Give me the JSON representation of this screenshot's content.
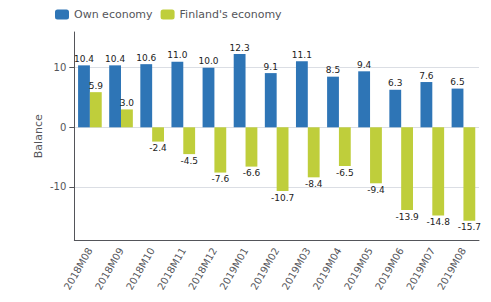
{
  "chart_data": {
    "type": "bar",
    "categories": [
      "2018M08",
      "2018M09",
      "2018M10",
      "2018M11",
      "2018M12",
      "2019M01",
      "2019M02",
      "2019M03",
      "2019M04",
      "2019M05",
      "2019M06",
      "2019M07",
      "2019M08"
    ],
    "series": [
      {
        "name": "Own economy",
        "color": "#2E75B6",
        "values": [
          10.4,
          10.4,
          10.6,
          11.0,
          10.0,
          12.3,
          9.1,
          11.1,
          8.5,
          9.4,
          6.3,
          7.6,
          6.5
        ],
        "value_labels": [
          "10.4",
          "10.4",
          "10.6",
          "11.0",
          "10.0",
          "12.3",
          "9.1",
          "11.1",
          "8.5",
          "9.4",
          "6.3",
          "7.6",
          "6.5"
        ]
      },
      {
        "name": "Finland's economy",
        "color": "#BFCE3B",
        "values": [
          5.9,
          3.0,
          -2.4,
          -4.5,
          -7.6,
          -6.6,
          -10.7,
          -8.4,
          -6.5,
          -9.4,
          -13.9,
          -14.8,
          -15.7
        ],
        "value_labels": [
          "5.9",
          "3.0",
          "-2.4",
          "-4.5",
          "-7.6",
          "-6.6",
          "-10.7",
          "-8.4",
          "-6.5",
          "-9.4",
          "-13.9",
          "-14.8",
          "-15.7"
        ]
      }
    ],
    "y_label": "Balance",
    "ylim": [
      -19,
      16
    ],
    "yticks": [
      -10,
      0,
      10
    ],
    "grid": true,
    "legend": "upper left",
    "data_labels": true
  }
}
